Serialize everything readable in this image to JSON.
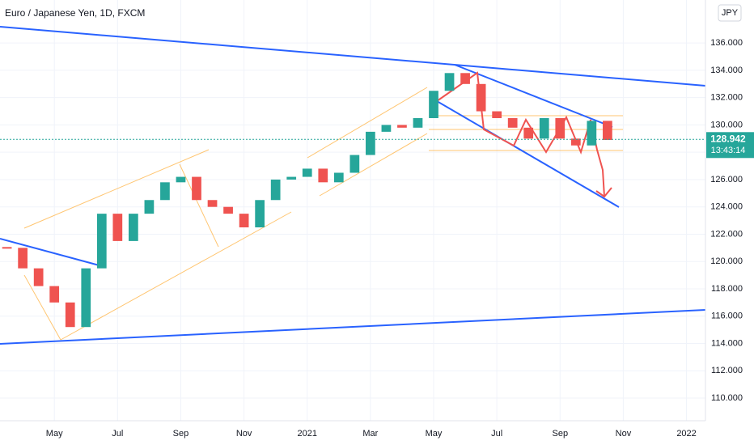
{
  "chart_data": {
    "type": "candles",
    "title": "Euro / Japanese Yen, 1D, FXCM",
    "currency": "JPY",
    "last_price": 128.942,
    "countdown": "13:43:14",
    "x": [
      2.5,
      3,
      3.5,
      4,
      4.5,
      5,
      5.5,
      6,
      6.5,
      7,
      7.5,
      8,
      8.5,
      9,
      9.5,
      10,
      10.5,
      11,
      11.5,
      12,
      12.5,
      13,
      13.5,
      14,
      14.5,
      15,
      15.5,
      16,
      16.5,
      17,
      17.5,
      18,
      18.5,
      19,
      19.5,
      20,
      20.5,
      21,
      21.5
    ],
    "values": [
      121,
      119.5,
      118.2,
      117,
      115.2,
      119.5,
      123.5,
      121.5,
      123.5,
      124.5,
      125.8,
      126.2,
      124.5,
      124,
      123.5,
      122.5,
      124.5,
      126,
      126.2,
      126.8,
      125.8,
      126.5,
      127.8,
      129.5,
      130,
      129.8,
      130.5,
      132.5,
      133.8,
      133,
      131,
      130.5,
      129.8,
      129,
      130.5,
      129,
      128.5,
      130.3,
      128.9
    ],
    "up_color": "#26a69a",
    "down_color": "#ef5350",
    "xlim": [
      2.28,
      24.6
    ],
    "xticks": [
      {
        "value": 4,
        "label": "May"
      },
      {
        "value": 6,
        "label": "Jul"
      },
      {
        "value": 8,
        "label": "Sep"
      },
      {
        "value": 10,
        "label": "Nov"
      },
      {
        "value": 12,
        "label": "2021"
      },
      {
        "value": 14,
        "label": "Mar"
      },
      {
        "value": 16,
        "label": "May"
      },
      {
        "value": 18,
        "label": "Jul"
      },
      {
        "value": 20,
        "label": "Sep"
      },
      {
        "value": 22,
        "label": "Nov"
      },
      {
        "value": 24,
        "label": "2022"
      }
    ],
    "ylim": [
      108.34,
      139.15
    ],
    "yticks": [
      {
        "value": 110,
        "label": "110.000"
      },
      {
        "value": 112,
        "label": "112.000"
      },
      {
        "value": 114,
        "label": "114.000"
      },
      {
        "value": 116,
        "label": "116.000"
      },
      {
        "value": 118,
        "label": "118.000"
      },
      {
        "value": 120,
        "label": "120.000"
      },
      {
        "value": 122,
        "label": "122.000"
      },
      {
        "value": 124,
        "label": "124.000"
      },
      {
        "value": 126,
        "label": "126.000"
      },
      {
        "value": 128,
        "label": "128.000"
      },
      {
        "value": 130,
        "label": "130.000"
      },
      {
        "value": 132,
        "label": "132.000"
      },
      {
        "value": 134,
        "label": "134.000"
      },
      {
        "value": 136,
        "label": "136.000"
      }
    ],
    "grid": true
  }
}
